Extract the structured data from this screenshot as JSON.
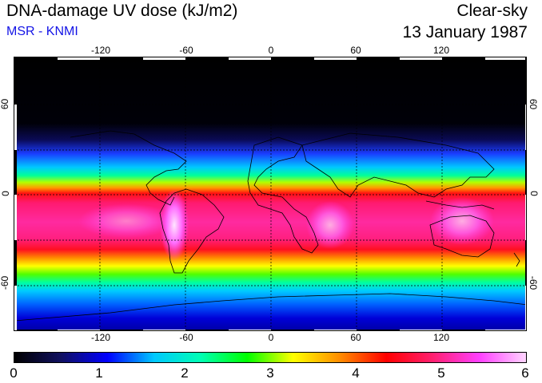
{
  "header": {
    "title": "DNA-damage UV dose (kJ/m2)",
    "subtitle": "MSR - KNMI",
    "condition": "Clear-sky",
    "date": "13 January 1987"
  },
  "colors": {
    "subtitle": "#1414e6",
    "scale": [
      "#000000",
      "#101060",
      "#0000ff",
      "#00c8ff",
      "#00ffb4",
      "#00ff00",
      "#ffff00",
      "#ff8c00",
      "#ff0000",
      "#ff2070",
      "#ff40ff",
      "#ffd4ff"
    ]
  },
  "map": {
    "lon_ticks_top": [
      "-120",
      "-60",
      "0",
      "60",
      "120"
    ],
    "lon_ticks_bottom": [
      "-120",
      "-60",
      "0",
      "60",
      "120"
    ],
    "lat_ticks_left": [
      "60",
      "0",
      "-60"
    ],
    "lat_ticks_right": [
      "60",
      "0",
      "-60"
    ],
    "lon_values": [
      -120,
      -60,
      0,
      60,
      120
    ],
    "lat_values": [
      60,
      0,
      -60
    ],
    "lon_range": [
      -180,
      180
    ],
    "lat_range": [
      -90,
      90
    ]
  },
  "colorbar": {
    "ticks": [
      "0",
      "1",
      "2",
      "3",
      "4",
      "5",
      "6"
    ],
    "min": 0,
    "max": 6
  }
}
